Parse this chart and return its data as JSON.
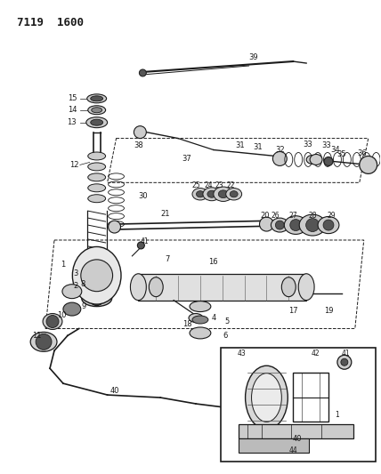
{
  "title": "7119  1600",
  "bg_color": "#ffffff",
  "fig_width": 4.28,
  "fig_height": 5.33,
  "dpi": 100
}
